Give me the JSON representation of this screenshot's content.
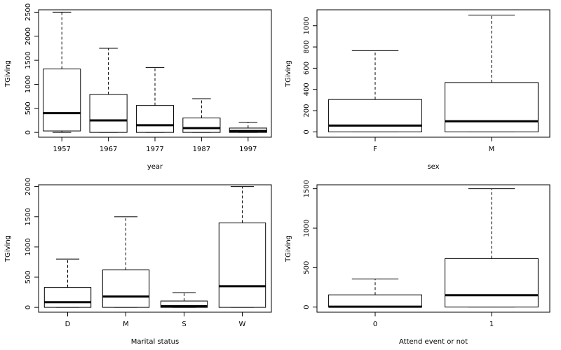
{
  "chart_data": [
    {
      "type": "boxplot",
      "xlabel": "year",
      "ylabel": "TGiving",
      "ylim": [
        -100,
        2550
      ],
      "yticks": [
        0,
        500,
        1000,
        1500,
        2000,
        2500
      ],
      "categories": [
        "1957",
        "1967",
        "1977",
        "1987",
        "1997"
      ],
      "boxes": [
        {
          "whisker_low": 0,
          "q1": 30,
          "median": 400,
          "q3": 1320,
          "whisker_high": 2500
        },
        {
          "whisker_low": 0,
          "q1": 0,
          "median": 250,
          "q3": 790,
          "whisker_high": 1750
        },
        {
          "whisker_low": 0,
          "q1": 0,
          "median": 150,
          "q3": 560,
          "whisker_high": 1350
        },
        {
          "whisker_low": 0,
          "q1": 0,
          "median": 90,
          "q3": 300,
          "whisker_high": 700
        },
        {
          "whisker_low": 0,
          "q1": 0,
          "median": 30,
          "q3": 90,
          "whisker_high": 210
        }
      ]
    },
    {
      "type": "boxplot",
      "xlabel": "sex",
      "ylabel": "TGiving",
      "ylim": [
        -50,
        1150
      ],
      "yticks": [
        0,
        200,
        400,
        600,
        800,
        1000
      ],
      "categories": [
        "F",
        "M"
      ],
      "boxes": [
        {
          "whisker_low": 0,
          "q1": 0,
          "median": 60,
          "q3": 305,
          "whisker_high": 765
        },
        {
          "whisker_low": 0,
          "q1": 0,
          "median": 100,
          "q3": 465,
          "whisker_high": 1100
        }
      ]
    },
    {
      "type": "boxplot",
      "xlabel": "Marital status",
      "ylabel": "TGiving",
      "ylim": [
        -80,
        2030
      ],
      "yticks": [
        0,
        500,
        1000,
        1500,
        2000
      ],
      "categories": [
        "D",
        "M",
        "S",
        "W"
      ],
      "boxes": [
        {
          "whisker_low": 0,
          "q1": 0,
          "median": 85,
          "q3": 330,
          "whisker_high": 800
        },
        {
          "whisker_low": 0,
          "q1": 0,
          "median": 180,
          "q3": 620,
          "whisker_high": 1500
        },
        {
          "whisker_low": 0,
          "q1": 0,
          "median": 20,
          "q3": 105,
          "whisker_high": 245
        },
        {
          "whisker_low": 0,
          "q1": 0,
          "median": 350,
          "q3": 1400,
          "whisker_high": 2000
        }
      ]
    },
    {
      "type": "boxplot",
      "xlabel": "Attend event or not",
      "ylabel": "TGiving",
      "ylim": [
        -65,
        1550
      ],
      "yticks": [
        0,
        500,
        1000,
        1500
      ],
      "categories": [
        "0",
        "1"
      ],
      "boxes": [
        {
          "whisker_low": 0,
          "q1": 0,
          "median": 5,
          "q3": 155,
          "whisker_high": 355
        },
        {
          "whisker_low": 0,
          "q1": 0,
          "median": 150,
          "q3": 615,
          "whisker_high": 1500
        }
      ]
    }
  ]
}
